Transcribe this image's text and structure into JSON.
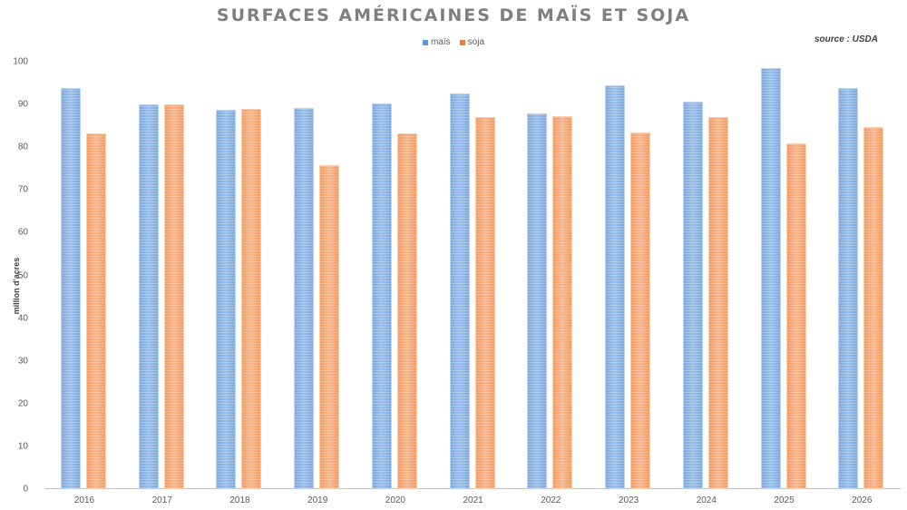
{
  "chart_data": {
    "type": "bar",
    "title": "SURFACES AMÉRICAINES DE MAÏS ET SOJA",
    "source": "source : USDA",
    "xlabel": "",
    "ylabel": "million d'acres",
    "ylim": [
      0,
      100
    ],
    "yticks": [
      0,
      10,
      20,
      30,
      40,
      50,
      60,
      70,
      80,
      90,
      100
    ],
    "grid": false,
    "legend_position": "top",
    "categories": [
      "2016",
      "2017",
      "2018",
      "2019",
      "2020",
      "2021",
      "2022",
      "2023",
      "2024",
      "2025",
      "2026"
    ],
    "series": [
      {
        "name": "maïs",
        "color": "#7aaae0",
        "values": [
          93.8,
          90.0,
          88.7,
          89.2,
          90.3,
          92.6,
          87.9,
          94.4,
          90.7,
          98.5,
          93.8
        ]
      },
      {
        "name": "soja",
        "color": "#f4a06b",
        "values": [
          83.2,
          90.0,
          89.0,
          75.9,
          83.2,
          87.1,
          87.2,
          83.4,
          87.1,
          81.0,
          84.7
        ]
      }
    ]
  },
  "legend": {
    "mais_label": "maïs",
    "soja_label": "soja",
    "mais_color": "#5b9bd5",
    "soja_color": "#ed7d31"
  }
}
